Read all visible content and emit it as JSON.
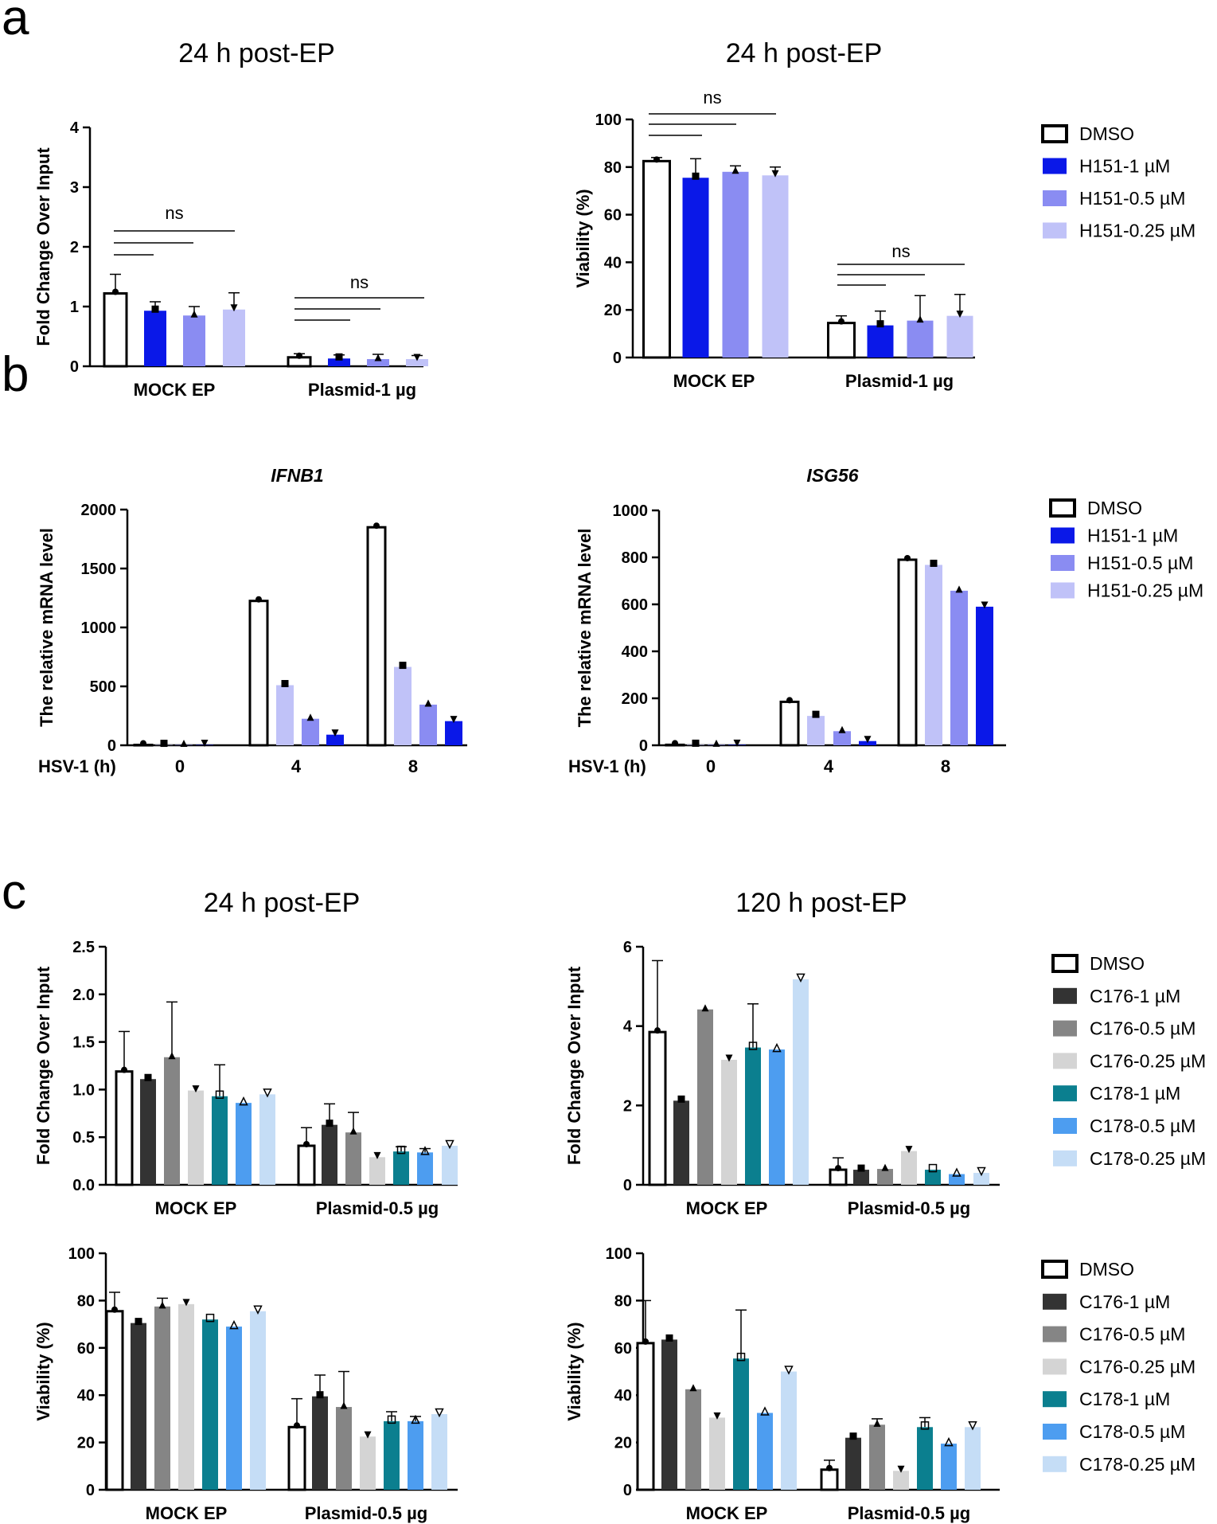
{
  "panel_labels": {
    "a": "a",
    "b": "b",
    "c": "c"
  },
  "colors": {
    "DMSO": "#ffffff",
    "H151-1 µM": "#0a18e8",
    "H151-0.5 µM": "#8a8cf2",
    "H151-0.25 µM": "#c0c2f8",
    "C176-1 µM": "#333333",
    "C176-0.5 µM": "#858585",
    "C176-0.25 µM": "#d4d4d4",
    "C178-1 µM": "#0b7f8f",
    "C178-0.5 µM": "#4d9df0",
    "C178-0.25 µM": "#c5ddf6"
  },
  "legends": {
    "a": [
      "DMSO",
      "H151-1 µM",
      "H151-0.5 µM",
      "H151-0.25 µM"
    ],
    "b": [
      "DMSO",
      "H151-1 µM",
      "H151-0.5 µM",
      "H151-0.25 µM"
    ],
    "c": [
      "DMSO",
      "C176-1 µM",
      "C176-0.5 µM",
      "C176-0.25 µM",
      "C178-1 µM",
      "C178-0.5 µM",
      "C178-0.25 µM"
    ]
  },
  "chart_data": [
    {
      "id": "a1",
      "type": "bar",
      "title": "24 h post-EP",
      "xlabel": "",
      "ylabel": "Fold Change Over Input",
      "ylim": [
        0,
        4
      ],
      "yticks": [
        0,
        1,
        2,
        3,
        4
      ],
      "categories": [
        "MOCK EP",
        "Plasmid-1 µg"
      ],
      "series": [
        {
          "name": "DMSO",
          "values": [
            1.22,
            0.15
          ],
          "err": [
            0.32,
            0.06
          ]
        },
        {
          "name": "H151-1 µM",
          "values": [
            0.93,
            0.13
          ],
          "err": [
            0.15,
            0.06
          ]
        },
        {
          "name": "H151-0.5 µM",
          "values": [
            0.85,
            0.12
          ],
          "err": [
            0.15,
            0.08
          ]
        },
        {
          "name": "H151-0.25 µM",
          "values": [
            0.95,
            0.12
          ],
          "err": [
            0.28,
            0.06
          ]
        }
      ],
      "annotations": [
        "ns",
        "ns"
      ]
    },
    {
      "id": "a2",
      "type": "bar",
      "title": "24 h post-EP",
      "xlabel": "",
      "ylabel": "Viability (%)",
      "ylim": [
        0,
        100
      ],
      "yticks": [
        0,
        20,
        40,
        60,
        80,
        100
      ],
      "categories": [
        "MOCK EP",
        "Plasmid-1 µg"
      ],
      "series": [
        {
          "name": "DMSO",
          "values": [
            82.5,
            14.5
          ],
          "err": [
            1.5,
            3
          ]
        },
        {
          "name": "H151-1 µM",
          "values": [
            75.5,
            13.5
          ],
          "err": [
            8,
            6
          ]
        },
        {
          "name": "H151-0.5 µM",
          "values": [
            78,
            15.5
          ],
          "err": [
            2.5,
            10.5
          ]
        },
        {
          "name": "H151-0.25 µM",
          "values": [
            76.5,
            17.5
          ],
          "err": [
            3.5,
            9
          ]
        }
      ],
      "annotations": [
        "ns",
        "ns"
      ]
    },
    {
      "id": "b1",
      "type": "bar",
      "title": "IFNB1",
      "xlabel": "HSV-1 (h)",
      "ylabel": "The relative mRNA level",
      "ylim": [
        0,
        2000
      ],
      "yticks": [
        0,
        500,
        1000,
        1500,
        2000
      ],
      "categories": [
        "0",
        "4",
        "8"
      ],
      "series": [
        {
          "name": "DMSO",
          "values": [
            3,
            1225,
            1850
          ]
        },
        {
          "name": "H151-0.25 µM",
          "values": [
            3,
            510,
            665
          ]
        },
        {
          "name": "H151-0.5 µM",
          "values": [
            3,
            225,
            345
          ]
        },
        {
          "name": "H151-1 µM",
          "values": [
            3,
            90,
            205
          ]
        }
      ]
    },
    {
      "id": "b2",
      "type": "bar",
      "title": "ISG56",
      "xlabel": "HSV-1 (h)",
      "ylabel": "The relative mRNA level",
      "ylim": [
        0,
        1000
      ],
      "yticks": [
        0,
        200,
        400,
        600,
        800,
        1000
      ],
      "categories": [
        "0",
        "4",
        "8"
      ],
      "series": [
        {
          "name": "DMSO",
          "values": [
            2,
            185,
            790
          ]
        },
        {
          "name": "H151-0.25 µM",
          "values": [
            2,
            125,
            768
          ]
        },
        {
          "name": "H151-0.5 µM",
          "values": [
            2,
            60,
            658
          ]
        },
        {
          "name": "H151-1 µM",
          "values": [
            2,
            18,
            590
          ]
        }
      ]
    },
    {
      "id": "c1",
      "type": "bar",
      "title": "24 h post-EP",
      "xlabel": "",
      "ylabel": "Fold Change Over Input",
      "ylim": [
        0,
        2.5
      ],
      "yticks": [
        0.0,
        0.5,
        1.0,
        1.5,
        2.0,
        2.5
      ],
      "categories": [
        "MOCK EP",
        "Plasmid-0.5 µg"
      ],
      "series": [
        {
          "name": "DMSO",
          "values": [
            1.19,
            0.41
          ],
          "err": [
            0.42,
            0.19
          ]
        },
        {
          "name": "C176-1 µM",
          "values": [
            1.11,
            0.63
          ],
          "err": [
            0,
            0.22
          ]
        },
        {
          "name": "C176-0.5 µM",
          "values": [
            1.34,
            0.55
          ],
          "err": [
            0.58,
            0.21
          ]
        },
        {
          "name": "C176-0.25 µM",
          "values": [
            0.99,
            0.29
          ],
          "err": [
            0,
            0
          ]
        },
        {
          "name": "C178-1 µM",
          "values": [
            0.93,
            0.35
          ],
          "err": [
            0.33,
            0.05
          ]
        },
        {
          "name": "C178-0.5 µM",
          "values": [
            0.86,
            0.34
          ],
          "err": [
            0,
            0.04
          ]
        },
        {
          "name": "C178-0.25 µM",
          "values": [
            0.95,
            0.41
          ],
          "err": [
            0,
            0
          ]
        }
      ]
    },
    {
      "id": "c2",
      "type": "bar",
      "title": "120 h post-EP",
      "xlabel": "",
      "ylabel": "Fold Change Over Input",
      "ylim": [
        0,
        6
      ],
      "yticks": [
        0,
        2,
        4,
        6
      ],
      "categories": [
        "MOCK EP",
        "Plasmid-0.5 µg"
      ],
      "series": [
        {
          "name": "DMSO",
          "values": [
            3.85,
            0.38
          ],
          "err": [
            1.8,
            0.3
          ]
        },
        {
          "name": "C176-1 µM",
          "values": [
            2.12,
            0.38
          ],
          "err": [
            0,
            0
          ]
        },
        {
          "name": "C176-0.5 µM",
          "values": [
            4.42,
            0.4
          ],
          "err": [
            0,
            0
          ]
        },
        {
          "name": "C176-0.25 µM",
          "values": [
            3.15,
            0.85
          ],
          "err": [
            0,
            0
          ]
        },
        {
          "name": "C178-1 µM",
          "values": [
            3.46,
            0.38
          ],
          "err": [
            1.1,
            0
          ]
        },
        {
          "name": "C178-0.5 µM",
          "values": [
            3.41,
            0.27
          ],
          "err": [
            0,
            0
          ]
        },
        {
          "name": "C178-0.25 µM",
          "values": [
            5.18,
            0.3
          ],
          "err": [
            0,
            0
          ]
        }
      ]
    },
    {
      "id": "c3",
      "type": "bar",
      "title": "",
      "xlabel": "",
      "ylabel": "Viability (%)",
      "ylim": [
        0,
        100
      ],
      "yticks": [
        0,
        20,
        40,
        60,
        80,
        100
      ],
      "categories": [
        "MOCK EP",
        "Plasmid-0.5 µg"
      ],
      "series": [
        {
          "name": "DMSO",
          "values": [
            75.5,
            26.5
          ],
          "err": [
            8,
            12
          ]
        },
        {
          "name": "C176-1 µM",
          "values": [
            70.5,
            39.5
          ],
          "err": [
            0,
            9
          ]
        },
        {
          "name": "C176-0.5 µM",
          "values": [
            77.5,
            35
          ],
          "err": [
            3.5,
            15
          ]
        },
        {
          "name": "C176-0.25 µM",
          "values": [
            78.5,
            22.5
          ],
          "err": [
            0,
            0
          ]
        },
        {
          "name": "C178-1 µM",
          "values": [
            72,
            29
          ],
          "err": [
            0,
            4
          ]
        },
        {
          "name": "C178-0.5 µM",
          "values": [
            69,
            29
          ],
          "err": [
            0,
            2
          ]
        },
        {
          "name": "C178-0.25 µM",
          "values": [
            75.5,
            32
          ],
          "err": [
            0,
            0
          ]
        }
      ]
    },
    {
      "id": "c4",
      "type": "bar",
      "title": "",
      "xlabel": "",
      "ylabel": "Viability (%)",
      "ylim": [
        0,
        100
      ],
      "yticks": [
        0,
        20,
        40,
        60,
        80,
        100
      ],
      "categories": [
        "MOCK EP",
        "Plasmid-0.5 µg"
      ],
      "series": [
        {
          "name": "DMSO",
          "values": [
            62,
            8.5
          ],
          "err": [
            18,
            4
          ]
        },
        {
          "name": "C176-1 µM",
          "values": [
            63.5,
            22
          ],
          "err": [
            0,
            0
          ]
        },
        {
          "name": "C176-0.5 µM",
          "values": [
            42.5,
            27.5
          ],
          "err": [
            0,
            2.5
          ]
        },
        {
          "name": "C176-0.25 µM",
          "values": [
            30.5,
            8
          ],
          "err": [
            0,
            0
          ]
        },
        {
          "name": "C178-1 µM",
          "values": [
            55.5,
            26.5
          ],
          "err": [
            20.5,
            4
          ]
        },
        {
          "name": "C178-0.5 µM",
          "values": [
            32.5,
            19.5
          ],
          "err": [
            0,
            0
          ]
        },
        {
          "name": "C178-0.25 µM",
          "values": [
            50,
            26.5
          ],
          "err": [
            0,
            0
          ]
        }
      ]
    }
  ]
}
